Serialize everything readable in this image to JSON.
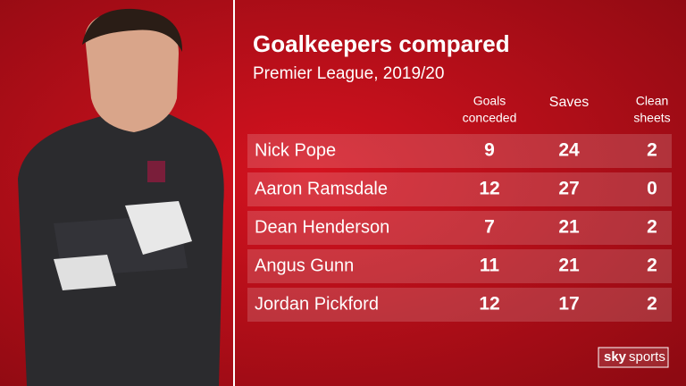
{
  "header": {
    "title": "Goalkeepers compared",
    "subtitle": "Premier League, 2019/20"
  },
  "table": {
    "columns": [
      [
        "Goals",
        "conceded"
      ],
      [
        "Saves"
      ],
      [
        "Clean",
        "sheets"
      ]
    ],
    "rows": [
      {
        "name": "Nick Pope",
        "values": [
          9,
          24,
          2
        ]
      },
      {
        "name": "Aaron Ramsdale",
        "values": [
          12,
          27,
          0
        ]
      },
      {
        "name": "Dean Henderson",
        "values": [
          7,
          21,
          2
        ]
      },
      {
        "name": "Angus Gunn",
        "values": [
          11,
          21,
          2
        ]
      },
      {
        "name": "Jordan Pickford",
        "values": [
          12,
          17,
          2
        ]
      }
    ]
  },
  "logo": {
    "brand": "sky",
    "product": "sports"
  }
}
